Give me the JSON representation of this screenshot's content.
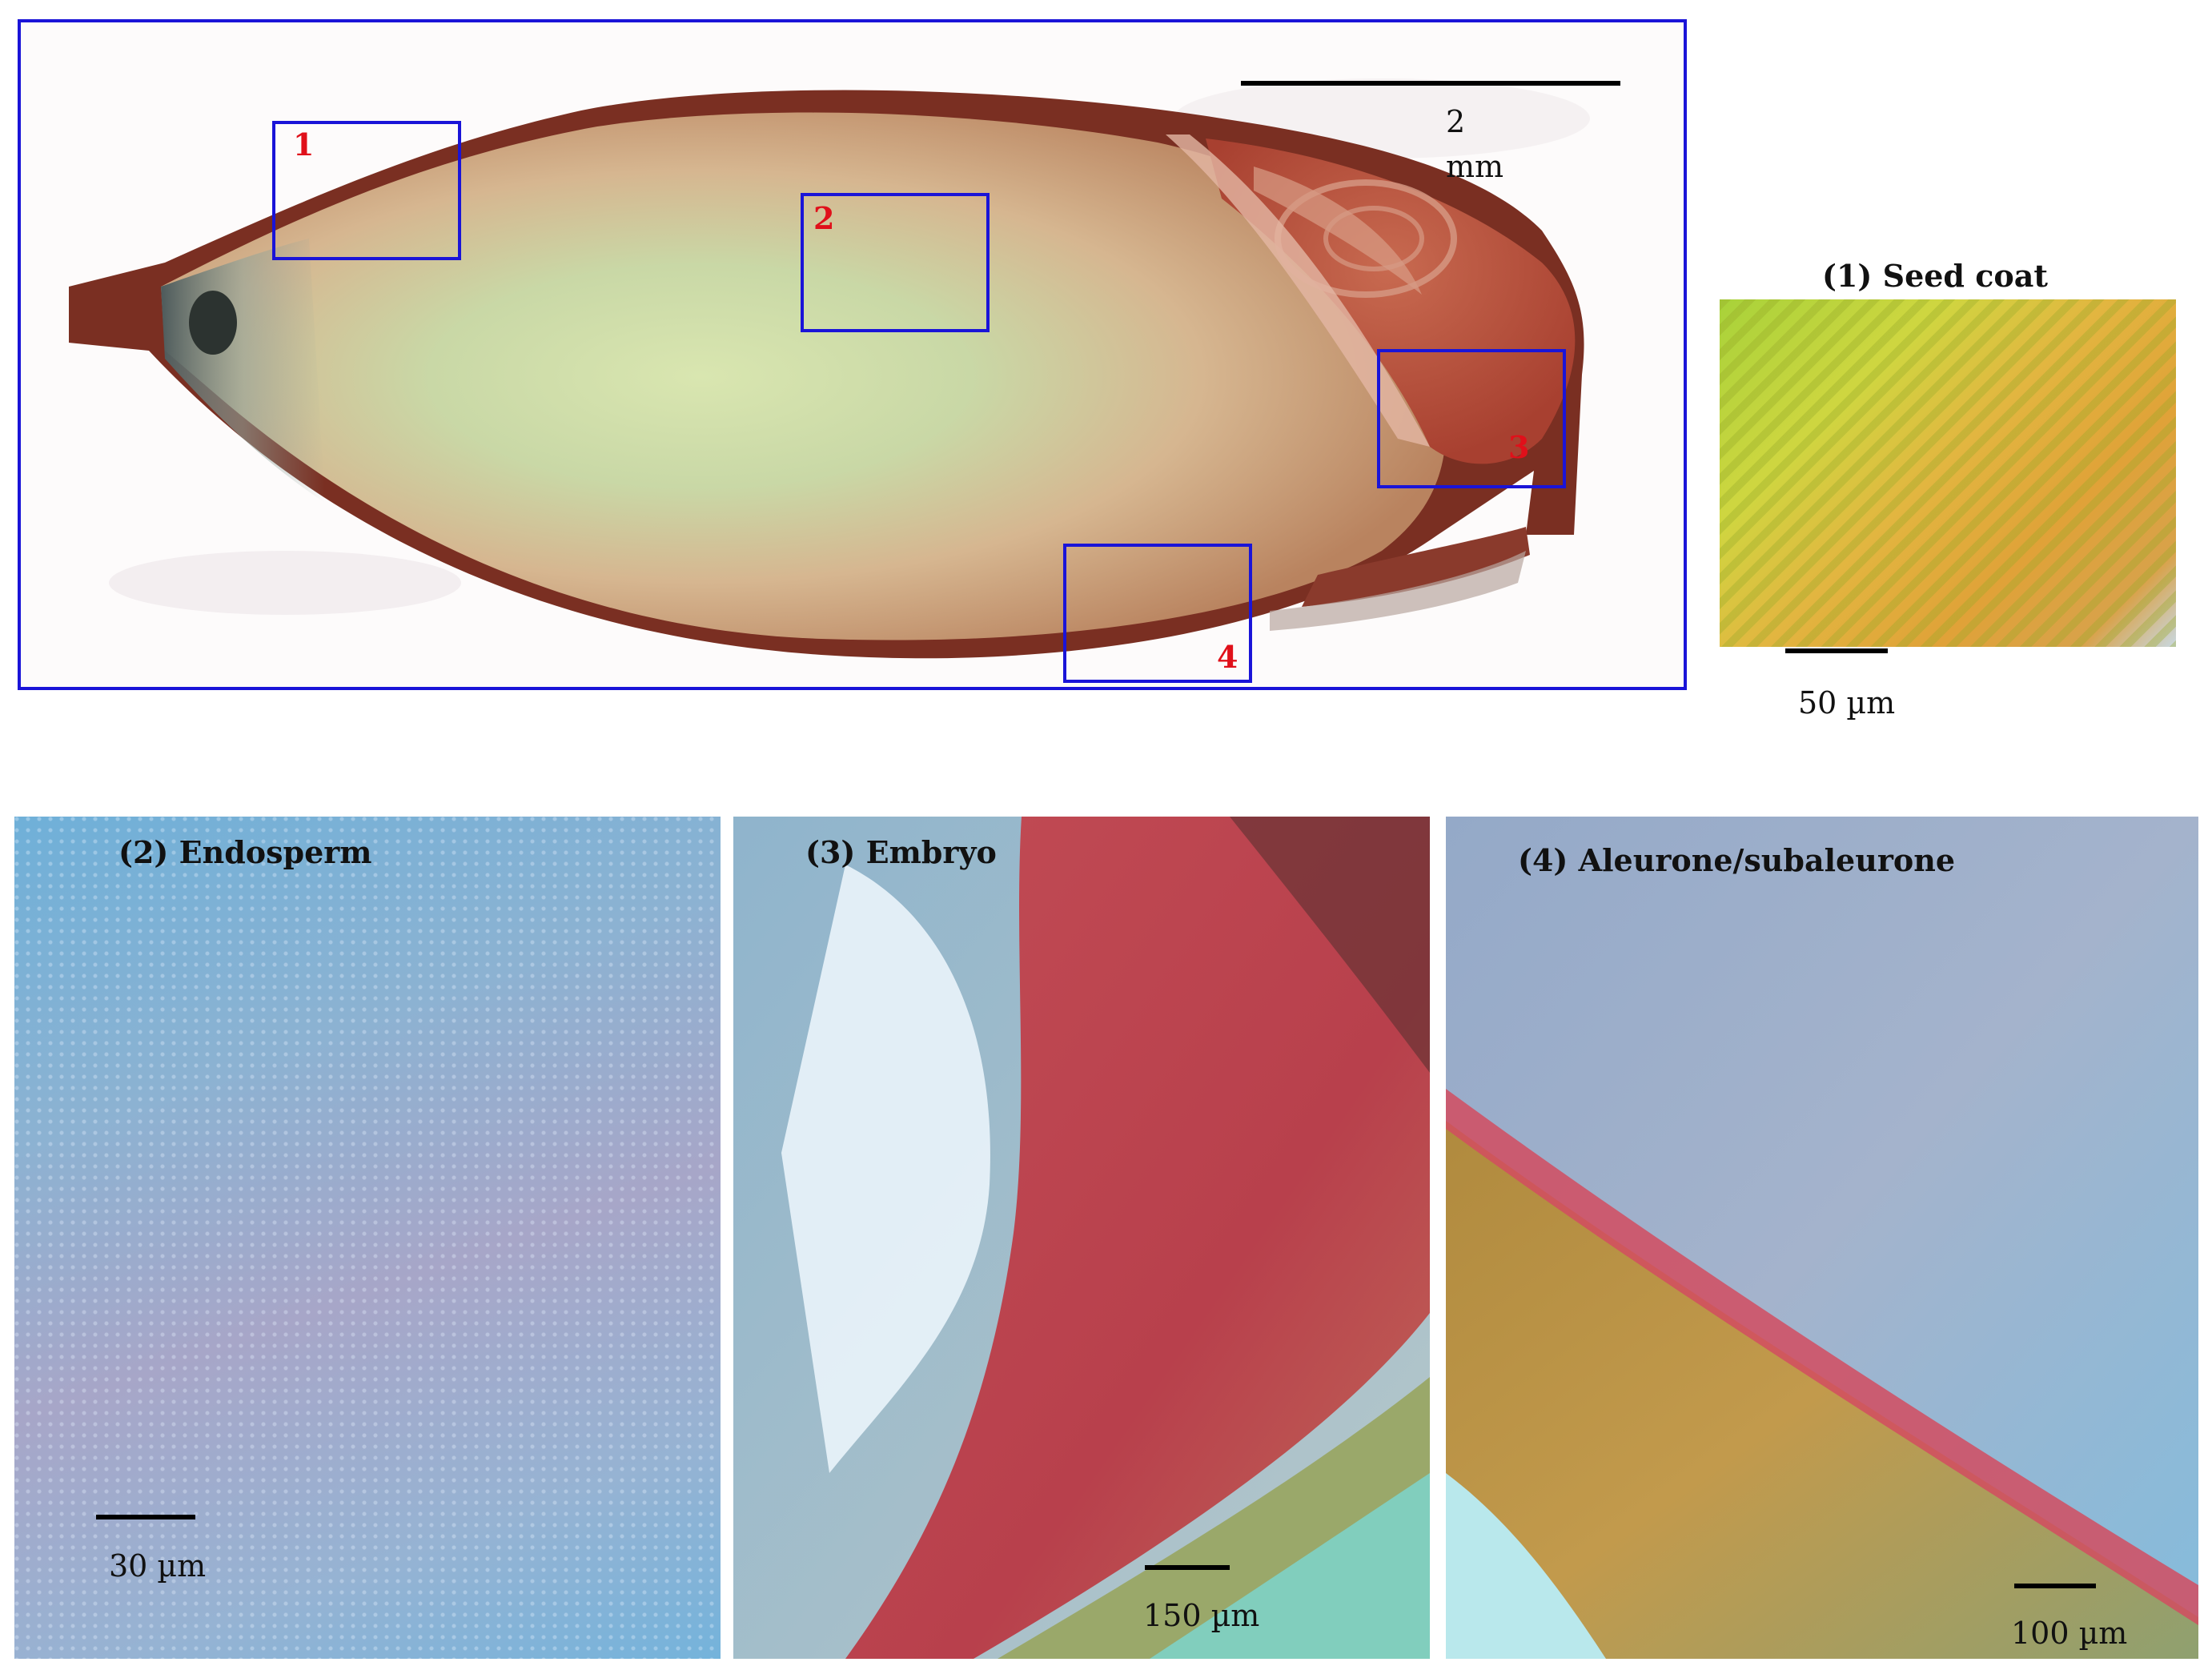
{
  "overview": {
    "scale_label_line1": "2",
    "scale_label_line2": "mm",
    "regions": [
      "1",
      "2",
      "3",
      "4"
    ],
    "frame_color": "#1a14d8",
    "region_label_color": "#e0101a"
  },
  "panels": {
    "seed_coat": {
      "title": "(1) Seed coat",
      "scale": "50 µm"
    },
    "endosperm": {
      "title": "(2) Endosperm",
      "scale": "30 µm"
    },
    "embryo": {
      "title": "(3) Embryo",
      "scale": "150 µm"
    },
    "aleurone": {
      "title": "(4) Aleurone/subaleurone",
      "scale": "100 µm"
    }
  }
}
